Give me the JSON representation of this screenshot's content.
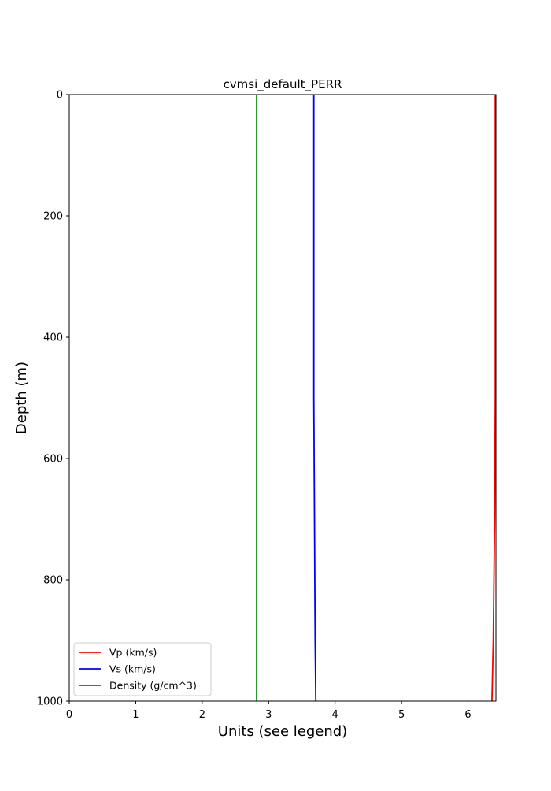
{
  "chart_data": {
    "type": "line",
    "title": "cvmsi_default_PERR",
    "xlabel": "Units (see legend)",
    "ylabel": "Depth (m)",
    "xlim": [
      0,
      6.42
    ],
    "ylim": [
      1000,
      0
    ],
    "y_inverted": true,
    "xticks": [
      0,
      1,
      2,
      3,
      4,
      5,
      6
    ],
    "yticks": [
      0,
      200,
      400,
      600,
      800,
      1000
    ],
    "grid": false,
    "legend_position": "lower-left",
    "series": [
      {
        "name": "Vp (km/s)",
        "color": "#ff0000",
        "points": [
          [
            6.41,
            0
          ],
          [
            6.41,
            500
          ],
          [
            6.4,
            700
          ],
          [
            6.38,
            900
          ],
          [
            6.36,
            1000
          ]
        ]
      },
      {
        "name": "Vs (km/s)",
        "color": "#0000ff",
        "points": [
          [
            3.68,
            0
          ],
          [
            3.68,
            500
          ],
          [
            3.69,
            700
          ],
          [
            3.7,
            900
          ],
          [
            3.71,
            1000
          ]
        ]
      },
      {
        "name": "Density (g/cm^3)",
        "color": "#008000",
        "points": [
          [
            2.82,
            0
          ],
          [
            2.82,
            1000
          ]
        ]
      }
    ]
  }
}
